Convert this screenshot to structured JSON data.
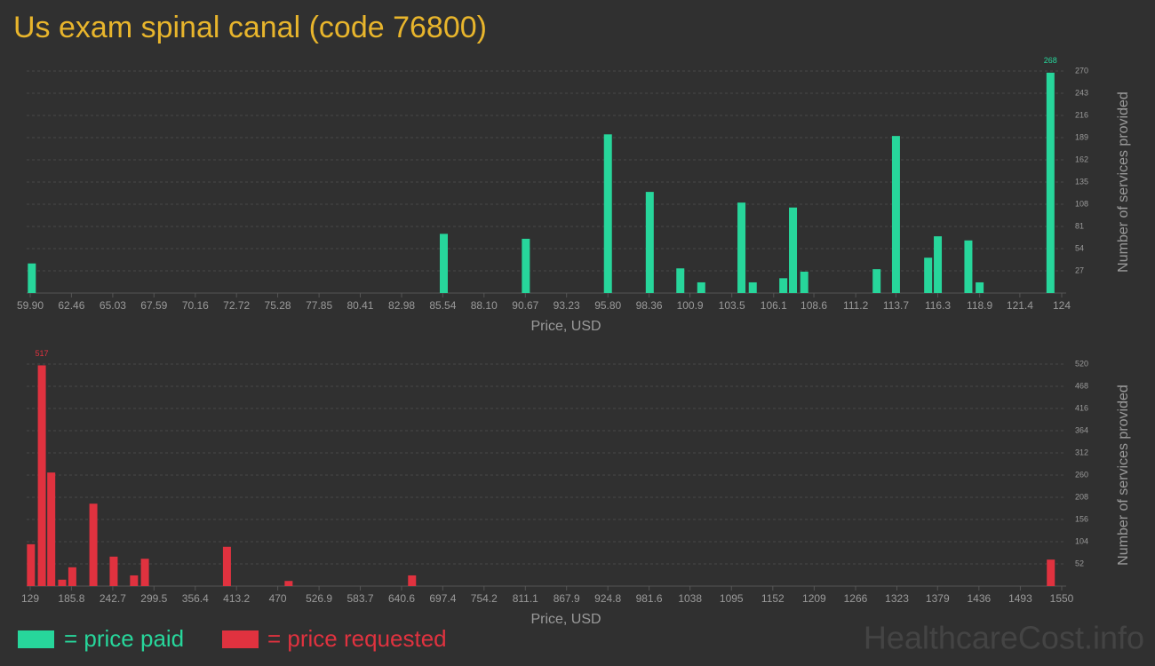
{
  "title": "Us exam spinal canal (code 76800)",
  "watermark": "HealthcareCost.info",
  "chart_data": [
    {
      "type": "bar",
      "x_label": "Price, USD",
      "y_label": "Number of services provided",
      "label_max": true,
      "grid": true,
      "xlim": [
        59.9,
        124
      ],
      "ylim": [
        0,
        270
      ],
      "xticks": [
        {
          "value": 59.9,
          "label": "59.90"
        },
        62.46,
        65.03,
        67.59,
        70.16,
        72.72,
        75.28,
        77.85,
        80.41,
        82.98,
        85.54,
        {
          "value": 88.1,
          "label": "88.10"
        },
        90.67,
        93.23,
        {
          "value": 95.8,
          "label": "95.80"
        },
        98.36,
        100.9,
        103.5,
        106.1,
        108.6,
        111.2,
        113.7,
        116.3,
        118.9,
        121.4,
        124
      ],
      "yticks": [
        27,
        54,
        81,
        108,
        135,
        162,
        189,
        216,
        243,
        270
      ],
      "x": [
        60.0,
        85.6,
        90.7,
        95.8,
        98.4,
        100.3,
        101.6,
        104.1,
        104.8,
        106.7,
        107.3,
        108.0,
        112.5,
        113.7,
        115.7,
        116.3,
        118.2,
        118.9,
        123.3
      ],
      "series": [
        {
          "name": "= price paid",
          "color": "#27d69b",
          "values": [
            36,
            72,
            66,
            193,
            123,
            30,
            13,
            110,
            13,
            18,
            104,
            26,
            29,
            191,
            43,
            69,
            64,
            13,
            268
          ]
        }
      ]
    },
    {
      "type": "bar",
      "x_label": "Price, USD",
      "y_label": "Number of services provided",
      "label_max": true,
      "grid": true,
      "xlim": [
        129,
        1550
      ],
      "ylim": [
        0,
        520
      ],
      "xticks": [
        129,
        185.8,
        242.7,
        299.5,
        356.4,
        413.2,
        470,
        526.9,
        583.7,
        640.6,
        697.4,
        754.2,
        811.1,
        867.9,
        924.8,
        981.6,
        1038,
        1095,
        1152,
        1209,
        1266,
        1323,
        1379,
        1436,
        1493,
        1550
      ],
      "yticks": [
        52,
        104,
        156,
        208,
        260,
        312,
        364,
        416,
        468,
        520
      ],
      "x": [
        130,
        145,
        158,
        173,
        187,
        216,
        244,
        272,
        287,
        400,
        485,
        655,
        1535
      ],
      "series": [
        {
          "name": "= price requested",
          "color": "#e0323f",
          "values": [
            98,
            517,
            266,
            15,
            44,
            193,
            69,
            25,
            64,
            92,
            12,
            25,
            62
          ]
        }
      ]
    }
  ]
}
